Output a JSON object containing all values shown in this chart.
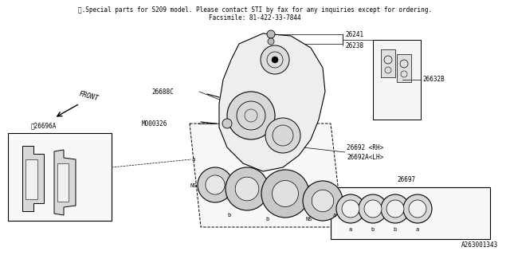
{
  "title_line1": "※.Special parts for S209 model. Please contact STI by fax for any inquiries except for ordering.",
  "title_line2": "Facsimile: 81-422-33-7844",
  "footer": "A263001343",
  "bg_color": "#ffffff",
  "line_color": "#000000",
  "fig_width": 6.4,
  "fig_height": 3.2,
  "dpi": 100,
  "label_26241": "26241",
  "label_26238": "26238",
  "label_26688C": "26688C",
  "label_M000326": "M000326",
  "label_26632B": "26632B",
  "label_26692RH": "26692 <RH>",
  "label_26692ALH": "26692A<LH>",
  "label_26696A": "※26696A",
  "label_26697": "26697",
  "label_FRONT": "FRONT"
}
